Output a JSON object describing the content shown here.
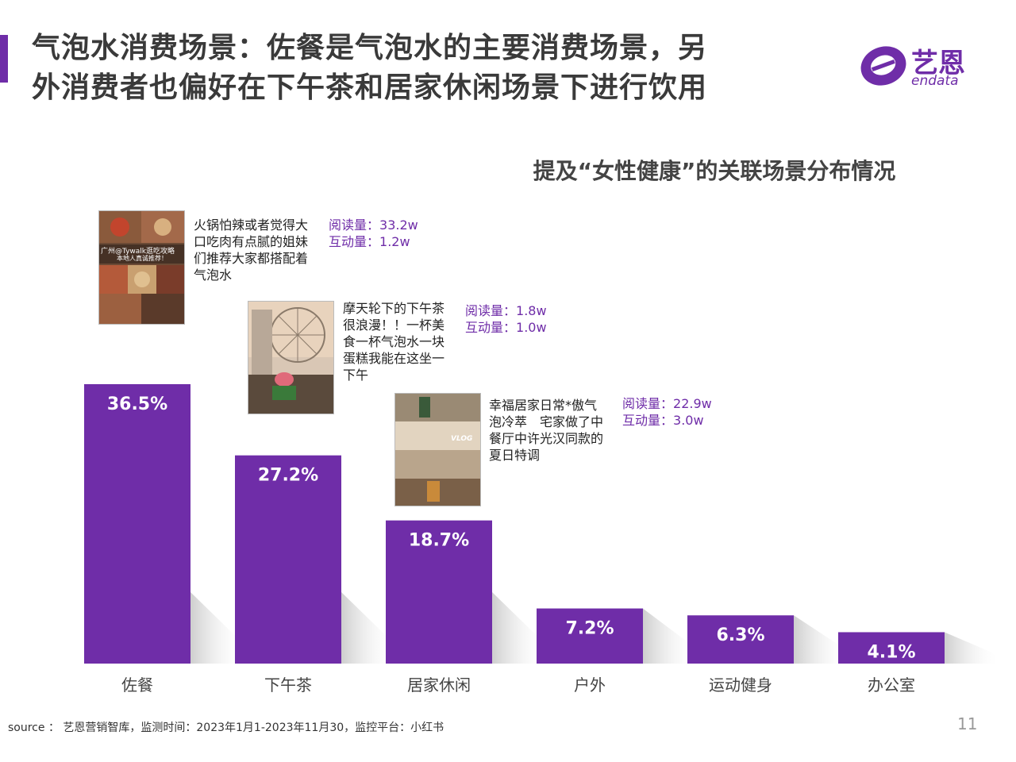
{
  "header": {
    "title_line1": "气泡水消费场景：佐餐是气泡水的主要消费场景，另",
    "title_line2": "外消费者也偏好在下午茶和居家休闲场景下进行饮用"
  },
  "logo": {
    "cn": "艺恩",
    "en": "endata",
    "brand_color": "#6f2da8"
  },
  "chart_data": {
    "type": "bar",
    "title": "提及“女性健康”的关联场景分布情况",
    "categories": [
      "佐餐",
      "下午茶",
      "居家休闲",
      "户外",
      "运动健身",
      "办公室"
    ],
    "values": [
      36.5,
      27.2,
      18.7,
      7.2,
      6.3,
      4.1
    ],
    "value_labels": [
      "36.5%",
      "27.2%",
      "18.7%",
      "7.2%",
      "6.3%",
      "4.1%"
    ],
    "ylim": [
      0,
      36.5
    ],
    "grid": false,
    "bar_color": "#6f2da8"
  },
  "annotations": [
    {
      "text": "火锅怕辣或者觉得大口吃肉有点腻的姐妹们推荐大家都搭配着气泡水",
      "thumb_caption1": "广州@Tywalk逛吃攻略",
      "thumb_caption2": "本地人真诚推荐！",
      "read_label": "阅读量：",
      "read_value": "33.2w",
      "interact_label": "互动量：",
      "interact_value": "1.2w"
    },
    {
      "text": "摩天轮下的下午茶很浪漫！！一杯美食一杯气泡水一块蛋糕我能在这坐一下午",
      "read_label": "阅读量：",
      "read_value": "1.8w",
      "interact_label": "互动量：",
      "interact_value": "1.0w"
    },
    {
      "text": "幸福居家日常*傲气泡冷萃　宅家做了中餐厅中许光汉同款的夏日特调",
      "thumb_caption1": "VLOG",
      "read_label": "阅读量：",
      "read_value": "22.9w",
      "interact_label": "互动量：",
      "interact_value": "3.0w"
    }
  ],
  "footer": {
    "source": "source ： 艺恩营销智库，监测时间：2023年1月1-2023年11月30，监控平台：小红书",
    "page_number": "11"
  }
}
